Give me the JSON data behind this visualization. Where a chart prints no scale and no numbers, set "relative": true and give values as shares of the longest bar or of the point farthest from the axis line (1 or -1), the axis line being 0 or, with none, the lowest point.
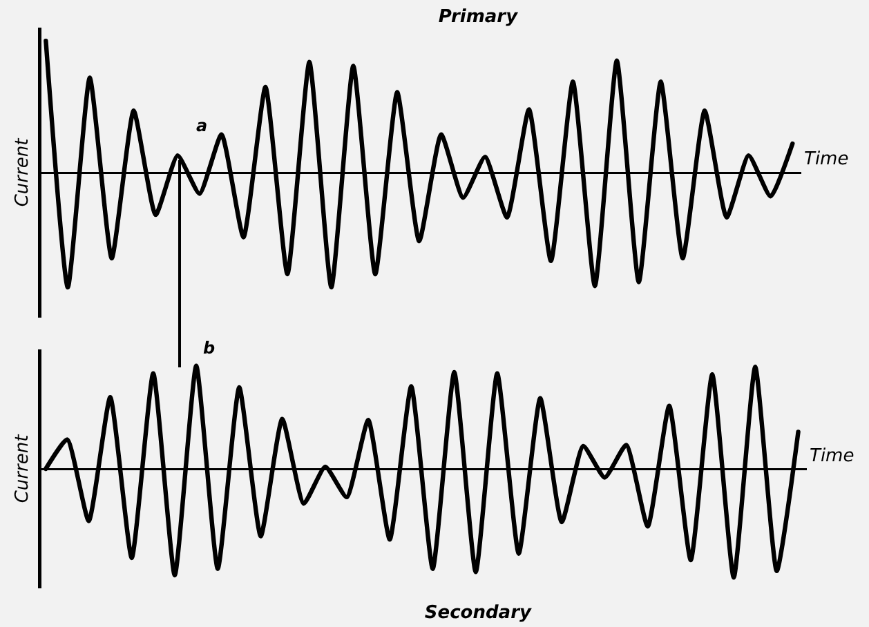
{
  "chart_data": [
    {
      "type": "line",
      "title": "Primary",
      "xlabel": "Time",
      "ylabel": "Current",
      "relative": true,
      "tick_labels": false,
      "marker": "none",
      "annotations": [
        "a"
      ],
      "categories": [
        null,
        null,
        null,
        null,
        null,
        null,
        null,
        null,
        null,
        null,
        null,
        null,
        null,
        null,
        null,
        null,
        null,
        null,
        null,
        null,
        null,
        null,
        null,
        null,
        null,
        null,
        null,
        null,
        null,
        null,
        null,
        null,
        null,
        null,
        null
      ],
      "series": [
        {
          "color": "#000000",
          "values": [
            1.0,
            -0.87,
            0.72,
            -0.65,
            0.47,
            -0.32,
            0.13,
            -0.16,
            0.29,
            -0.49,
            0.65,
            -0.77,
            0.84,
            -0.87,
            0.81,
            -0.77,
            0.61,
            -0.52,
            0.29,
            -0.19,
            0.12,
            -0.34,
            0.48,
            -0.67,
            0.69,
            -0.86,
            0.85,
            -0.83,
            0.69,
            -0.65,
            0.47,
            -0.34,
            0.13,
            -0.18,
            0.22
          ]
        }
      ]
    },
    {
      "type": "line",
      "title": "Secondary",
      "xlabel": "Time",
      "ylabel": "Current",
      "relative": true,
      "tick_labels": false,
      "marker": "none",
      "annotations": [
        "b"
      ],
      "categories": [
        null,
        null,
        null,
        null,
        null,
        null,
        null,
        null,
        null,
        null,
        null,
        null,
        null,
        null,
        null,
        null,
        null,
        null,
        null,
        null,
        null,
        null,
        null,
        null,
        null,
        null,
        null,
        null,
        null,
        null,
        null,
        null,
        null,
        null,
        null,
        null
      ],
      "series": [
        {
          "color": "#000000",
          "values": [
            0,
            0.27,
            -0.48,
            0.66,
            -0.82,
            0.88,
            -0.98,
            0.95,
            -0.92,
            0.75,
            -0.62,
            0.46,
            -0.32,
            0.02,
            -0.26,
            0.45,
            -0.65,
            0.76,
            -0.92,
            0.89,
            -0.95,
            0.88,
            -0.78,
            0.65,
            -0.49,
            0.21,
            -0.08,
            0.22,
            -0.53,
            0.58,
            -0.84,
            0.87,
            -1.0,
            0.94,
            -0.94,
            0.34
          ]
        }
      ]
    }
  ]
}
